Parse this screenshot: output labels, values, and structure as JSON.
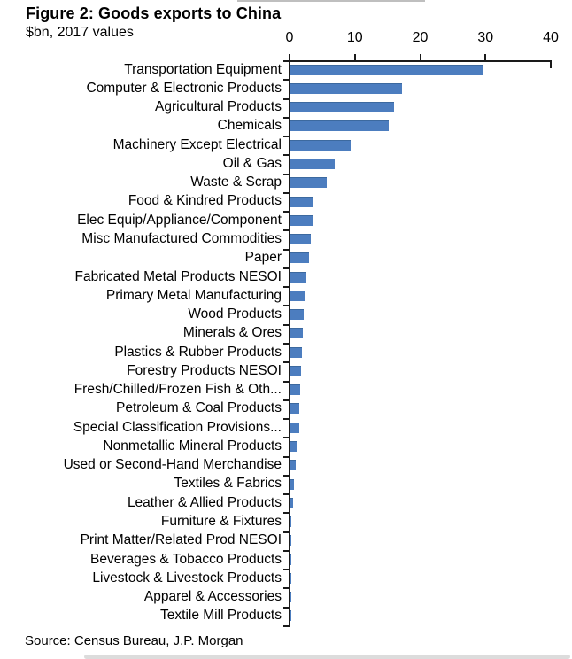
{
  "header": {
    "title": "Figure 2: Goods exports to China",
    "subtitle": "$bn, 2017 values"
  },
  "source": "Source: Census Bureau, J.P. Morgan",
  "chart_data": {
    "type": "bar",
    "orientation": "horizontal",
    "title": "Figure 2: Goods exports to China",
    "subtitle": "$bn, 2017 values",
    "xlabel": "$bn, 2017 values",
    "ylabel": "",
    "xlim": [
      0,
      40
    ],
    "x_ticks": [
      0,
      10,
      20,
      30,
      40
    ],
    "grid": false,
    "legend": "none",
    "bar_color": "#4c7dbf",
    "categories": [
      "Transportation Equipment",
      "Computer & Electronic Products",
      "Agricultural Products",
      "Chemicals",
      "Machinery Except Electrical",
      "Oil & Gas",
      "Waste & Scrap",
      "Food & Kindred Products",
      "Elec Equip/Appliance/Component",
      "Misc Manufactured Commodities",
      "Paper",
      "Fabricated Metal Products NESOI",
      "Primary Metal Manufacturing",
      "Wood Products",
      "Minerals & Ores",
      "Plastics & Rubber Products",
      "Forestry Products NESOI",
      "Fresh/Chilled/Frozen Fish & Oth...",
      "Petroleum & Coal Products",
      "Special Classification Provisions...",
      "Nonmetallic Mineral Products",
      "Used or Second-Hand Merchandise",
      "Textiles & Fabrics",
      "Leather & Allied Products",
      "Furniture & Fixtures",
      "Print Matter/Related Prod NESOI",
      "Beverages & Tobacco Products",
      "Livestock & Livestock Products",
      "Apparel & Accessories",
      "Textile Mill Products"
    ],
    "values": [
      29.5,
      17.1,
      15.8,
      15.1,
      9.2,
      6.8,
      5.6,
      3.4,
      3.4,
      3.1,
      2.8,
      2.4,
      2.3,
      2.0,
      1.9,
      1.8,
      1.6,
      1.5,
      1.4,
      1.3,
      1.0,
      0.8,
      0.5,
      0.4,
      0.1,
      0.1,
      0.1,
      0.1,
      0.05,
      0.05
    ]
  }
}
